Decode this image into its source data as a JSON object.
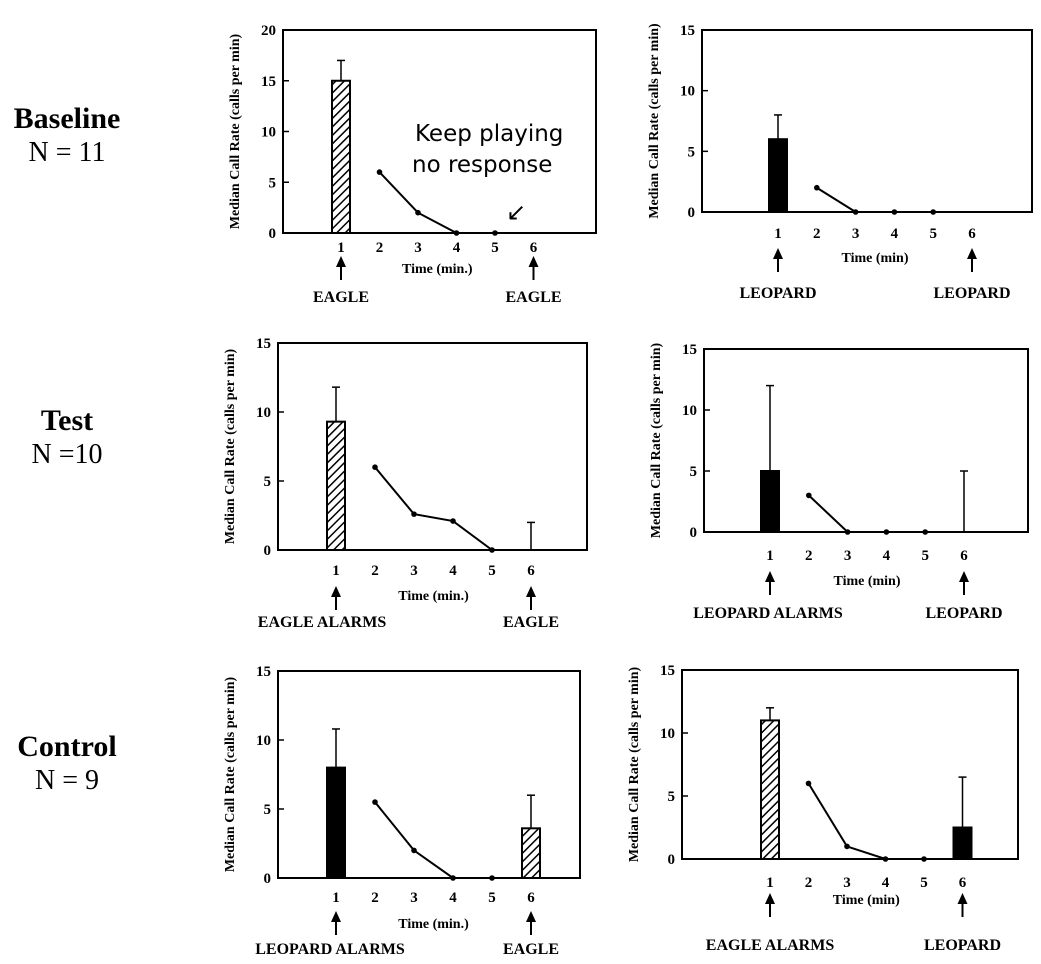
{
  "rows": [
    {
      "name": "Baseline",
      "n": "N = 11"
    },
    {
      "name": "Test",
      "n": "N =10"
    },
    {
      "name": "Control",
      "n": "N = 9"
    }
  ],
  "colors": {
    "ink": "#000000",
    "background": "#ffffff"
  },
  "chart_data": [
    {
      "type": "bar",
      "ylabel": "Median Call Rate (calls per min)",
      "xlabel": "Time (min.)",
      "ylim": [
        0,
        20
      ],
      "yticks": [
        0,
        5,
        10,
        15,
        20
      ],
      "x_ticks": [
        1,
        2,
        3,
        4,
        5,
        6
      ],
      "bars": [
        {
          "x": 1,
          "value": 15,
          "error_top": 17,
          "fill": "hatched"
        }
      ],
      "series": [
        {
          "x": [
            2,
            3,
            4,
            5
          ],
          "values": [
            6,
            2,
            0,
            0
          ]
        }
      ],
      "markers": [
        {
          "x": 1,
          "label": "EAGLE"
        },
        {
          "x": 6,
          "label": "EAGLE"
        }
      ],
      "annotation": {
        "lines": [
          "Keep playing",
          "no response"
        ],
        "arrow": "↙"
      }
    },
    {
      "type": "bar",
      "ylabel": "Median Call Rate (calls per min)",
      "xlabel": "Time (min)",
      "ylim": [
        0,
        15
      ],
      "yticks": [
        0,
        5,
        10,
        15
      ],
      "x_ticks": [
        1,
        2,
        3,
        4,
        5,
        6
      ],
      "bars": [
        {
          "x": 1,
          "value": 6,
          "error_top": 8,
          "fill": "solid"
        }
      ],
      "series": [
        {
          "x": [
            2,
            3,
            4,
            5
          ],
          "values": [
            2,
            0,
            0,
            0
          ]
        }
      ],
      "markers": [
        {
          "x": 1,
          "label": "LEOPARD"
        },
        {
          "x": 6,
          "label": "LEOPARD"
        }
      ]
    },
    {
      "type": "bar",
      "ylabel": "Median Call Rate (calls per min)",
      "xlabel": "Time (min.)",
      "ylim": [
        0,
        15
      ],
      "yticks": [
        0,
        5,
        10,
        15
      ],
      "x_ticks": [
        1,
        2,
        3,
        4,
        5,
        6
      ],
      "bars": [
        {
          "x": 1,
          "value": 9.3,
          "error_top": 11.8,
          "fill": "hatched"
        },
        {
          "x": 6,
          "value": 0,
          "error_top": 2,
          "fill": "none"
        }
      ],
      "series": [
        {
          "x": [
            2,
            3,
            4,
            5
          ],
          "values": [
            6,
            2.6,
            2.1,
            0
          ]
        }
      ],
      "markers": [
        {
          "x": 1,
          "label": "EAGLE ALARMS"
        },
        {
          "x": 6,
          "label": "EAGLE"
        }
      ]
    },
    {
      "type": "bar",
      "ylabel": "Median Call Rate (calls per min)",
      "xlabel": "Time (min)",
      "ylim": [
        0,
        15
      ],
      "yticks": [
        0,
        5,
        10,
        15
      ],
      "x_ticks": [
        1,
        2,
        3,
        4,
        5,
        6
      ],
      "bars": [
        {
          "x": 1,
          "value": 5,
          "error_top": 12,
          "fill": "solid"
        },
        {
          "x": 6,
          "value": 0,
          "error_top": 5,
          "fill": "none"
        }
      ],
      "series": [
        {
          "x": [
            2,
            3,
            4,
            5
          ],
          "values": [
            3,
            0,
            0,
            0
          ]
        }
      ],
      "markers": [
        {
          "x": 1,
          "label": "LEOPARD ALARMS"
        },
        {
          "x": 6,
          "label": "LEOPARD"
        }
      ]
    },
    {
      "type": "bar",
      "ylabel": "Median Call Rate (calls per min)",
      "xlabel": "Time (min.)",
      "ylim": [
        0,
        15
      ],
      "yticks": [
        0,
        5,
        10,
        15
      ],
      "x_ticks": [
        1,
        2,
        3,
        4,
        5,
        6
      ],
      "bars": [
        {
          "x": 1,
          "value": 8,
          "error_top": 10.8,
          "fill": "solid"
        },
        {
          "x": 6,
          "value": 3.6,
          "error_top": 6,
          "fill": "hatched"
        }
      ],
      "series": [
        {
          "x": [
            2,
            3,
            4,
            5
          ],
          "values": [
            5.5,
            2,
            0,
            0
          ]
        }
      ],
      "markers": [
        {
          "x": 1,
          "label": "LEOPARD ALARMS"
        },
        {
          "x": 6,
          "label": "EAGLE"
        }
      ]
    },
    {
      "type": "bar",
      "ylabel": "Median Call Rate (calls per min)",
      "xlabel": "Time (min)",
      "ylim": [
        0,
        15
      ],
      "yticks": [
        0,
        5,
        10,
        15
      ],
      "x_ticks": [
        1,
        2,
        3,
        4,
        5,
        6
      ],
      "bars": [
        {
          "x": 1,
          "value": 11,
          "error_top": 12,
          "fill": "hatched"
        },
        {
          "x": 6,
          "value": 2.5,
          "error_top": 6.5,
          "fill": "solid"
        }
      ],
      "series": [
        {
          "x": [
            2,
            3,
            4,
            5
          ],
          "values": [
            6,
            1,
            0,
            0
          ]
        }
      ],
      "markers": [
        {
          "x": 1,
          "label": "EAGLE ALARMS"
        },
        {
          "x": 6,
          "label": "LEOPARD"
        }
      ]
    }
  ]
}
